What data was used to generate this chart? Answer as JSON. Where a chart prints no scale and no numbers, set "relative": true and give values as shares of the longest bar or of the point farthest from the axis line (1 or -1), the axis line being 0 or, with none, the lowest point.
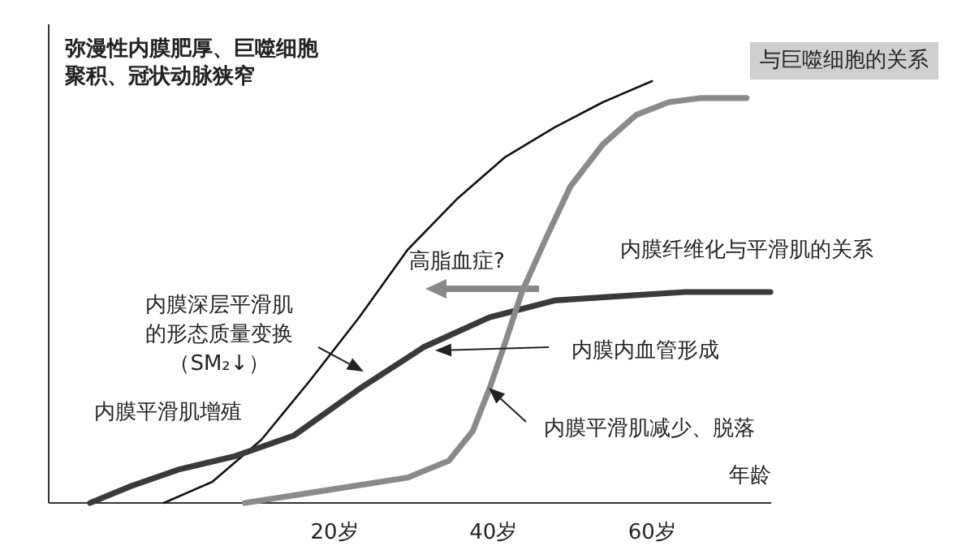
{
  "chart_data": {
    "type": "line",
    "relative": true,
    "xlabel": "年龄",
    "xlim": [
      -16,
      75
    ],
    "xticks": [
      {
        "value": 20,
        "label": "20岁"
      },
      {
        "value": 40,
        "label": "40岁"
      },
      {
        "value": 60,
        "label": "60岁"
      }
    ],
    "series": [
      {
        "color": "#111111",
        "x": [
          -1.5,
          4.6,
          10.8,
          16.9,
          23.1,
          29.2,
          35.4,
          41.5,
          47.7,
          53.8,
          60.0
        ],
        "values": [
          0,
          0.05,
          0.15,
          0.29,
          0.44,
          0.6,
          0.72,
          0.82,
          0.89,
          0.95,
          1
        ]
      },
      {
        "color": "#3a3a3a",
        "x": [
          -10.8,
          -5.6,
          0.5,
          7.3,
          14.9,
          23.1,
          31.3,
          39.5,
          47.7,
          55.9,
          64.1,
          74.9
        ],
        "values": [
          0,
          0.04,
          0.08,
          0.11,
          0.16,
          0.27,
          0.37,
          0.44,
          0.48,
          0.49,
          0.5,
          0.5
        ]
      },
      {
        "color": "#8a8a8a",
        "x": [
          8.7,
          19.0,
          29.2,
          34.4,
          37.4,
          39.5,
          41.5,
          43.6,
          46.7,
          49.7,
          53.8,
          58.0,
          62.1,
          66.2,
          71.9
        ],
        "values": [
          0,
          0.03,
          0.06,
          0.1,
          0.17,
          0.27,
          0.38,
          0.5,
          0.63,
          0.75,
          0.85,
          0.92,
          0.95,
          0.96,
          0.96
        ]
      }
    ],
    "annotations": [
      "弥漫性内膜肥厚、巨噬细胞",
      "聚积、冠状动脉狭窄",
      "与巨噬细胞的关系",
      "高脂血症?",
      "内膜纤维化与平滑肌的关系",
      "内膜深层平滑肌",
      "的形态质量变换",
      "（SM₂↓）",
      "内膜内血管形成",
      "内膜平滑肌增殖",
      "内膜平滑肌减少、脱落"
    ]
  }
}
